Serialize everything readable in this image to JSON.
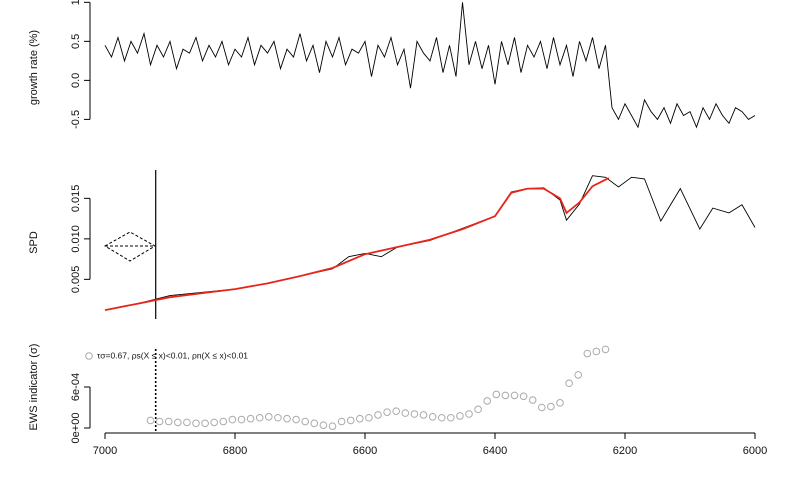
{
  "chart_data": [
    {
      "type": "line",
      "y_label": "growth rate (%)",
      "xlim": [
        7000,
        6000
      ],
      "ylim": [
        -0.7,
        1.03
      ],
      "yticks": [
        -0.5,
        {
          "value": 0,
          "label": "0.0"
        },
        0.5,
        1
      ],
      "series": [
        {
          "color": "#000000",
          "x": [
            7000,
            6990,
            6980,
            6970,
            6960,
            6950,
            6940,
            6930,
            6920,
            6910,
            6900,
            6890,
            6880,
            6870,
            6860,
            6850,
            6840,
            6830,
            6820,
            6810,
            6800,
            6790,
            6780,
            6770,
            6760,
            6750,
            6740,
            6730,
            6720,
            6710,
            6700,
            6690,
            6680,
            6670,
            6660,
            6650,
            6640,
            6630,
            6620,
            6610,
            6600,
            6590,
            6580,
            6570,
            6560,
            6550,
            6540,
            6530,
            6520,
            6510,
            6500,
            6490,
            6480,
            6470,
            6460,
            6450,
            6440,
            6430,
            6420,
            6410,
            6400,
            6390,
            6380,
            6370,
            6360,
            6350,
            6340,
            6330,
            6320,
            6310,
            6300,
            6290,
            6280,
            6270,
            6260,
            6250,
            6240,
            6230,
            6220,
            6210,
            6200,
            6190,
            6180,
            6170,
            6160,
            6150,
            6140,
            6130,
            6120,
            6110,
            6100,
            6090,
            6080,
            6070,
            6060,
            6050,
            6040,
            6030,
            6020,
            6010,
            6000
          ],
          "values": [
            0.45,
            0.3,
            0.55,
            0.25,
            0.5,
            0.35,
            0.6,
            0.2,
            0.45,
            0.3,
            0.5,
            0.15,
            0.4,
            0.35,
            0.55,
            0.25,
            0.45,
            0.3,
            0.5,
            0.2,
            0.4,
            0.3,
            0.55,
            0.2,
            0.45,
            0.35,
            0.5,
            0.15,
            0.4,
            0.3,
            0.6,
            0.25,
            0.45,
            0.1,
            0.5,
            0.3,
            0.55,
            0.2,
            0.4,
            0.35,
            0.5,
            0.05,
            0.45,
            0.3,
            0.55,
            0.2,
            0.4,
            -0.1,
            0.5,
            0.35,
            0.25,
            0.55,
            0.1,
            0.45,
            0.05,
            1.0,
            0.2,
            0.5,
            0.15,
            0.45,
            -0.05,
            0.5,
            0.2,
            0.55,
            0.1,
            0.45,
            0.3,
            0.5,
            0.15,
            0.55,
            0.2,
            0.45,
            0.05,
            0.5,
            0.25,
            0.55,
            0.15,
            0.45,
            -0.35,
            -0.5,
            -0.3,
            -0.45,
            -0.6,
            -0.25,
            -0.4,
            -0.5,
            -0.35,
            -0.55,
            -0.3,
            -0.45,
            -0.4,
            -0.6,
            -0.35,
            -0.5,
            -0.3,
            -0.45,
            -0.55,
            -0.35,
            -0.4,
            -0.5,
            -0.45
          ]
        }
      ]
    },
    {
      "type": "line",
      "y_label": "SPD",
      "xlim": [
        7000,
        6000
      ],
      "ylim": [
        0.0006,
        0.0185
      ],
      "yticks": [
        0.005,
        {
          "value": 0.01,
          "label": "0.010"
        },
        0.015
      ],
      "vline_x": 6922,
      "series": [
        {
          "color": "#000000",
          "x": [
            7000,
            6950,
            6900,
            6850,
            6800,
            6750,
            6700,
            6650,
            6625,
            6600,
            6575,
            6550,
            6500,
            6450,
            6400,
            6375,
            6350,
            6325,
            6300,
            6290,
            6270,
            6250,
            6230,
            6210,
            6190,
            6170,
            6145,
            6115,
            6085,
            6065,
            6040,
            6020,
            6000
          ],
          "values": [
            0.0012,
            0.002,
            0.003,
            0.0034,
            0.0038,
            0.0045,
            0.0054,
            0.0063,
            0.0078,
            0.0082,
            0.0078,
            0.009,
            0.0098,
            0.0113,
            0.0128,
            0.0158,
            0.0162,
            0.0163,
            0.0148,
            0.0123,
            0.0143,
            0.0178,
            0.0176,
            0.0164,
            0.0176,
            0.0174,
            0.0122,
            0.0162,
            0.0112,
            0.0138,
            0.0132,
            0.0142,
            0.0114
          ]
        },
        {
          "color": "#e8251a",
          "x": [
            7000,
            6950,
            6900,
            6850,
            6800,
            6750,
            6700,
            6650,
            6600,
            6550,
            6500,
            6450,
            6400,
            6375,
            6350,
            6325,
            6300,
            6290,
            6270,
            6250,
            6225
          ],
          "values": [
            0.0012,
            0.002,
            0.0028,
            0.0033,
            0.0038,
            0.0045,
            0.0054,
            0.0064,
            0.0081,
            0.009,
            0.0099,
            0.0112,
            0.0128,
            0.0157,
            0.0162,
            0.0162,
            0.015,
            0.0132,
            0.0145,
            0.0165,
            0.0175
          ]
        }
      ]
    },
    {
      "type": "scatter",
      "y_label": "EWS indicator (σ)",
      "annotation": "τσ=0.67, ρs(X ≤ x)<0.01, ρn(X ≤ x)<0.01",
      "xlim": [
        7000,
        6000
      ],
      "ylim": [
        0,
        0.0012
      ],
      "xticks": [
        7000,
        6800,
        6600,
        6400,
        6200,
        6000
      ],
      "yticks": [
        {
          "value": 0,
          "label": "0e+00"
        },
        {
          "value": 0.0006,
          "label": "6e-04"
        }
      ],
      "vline_x": 6922,
      "series": [
        {
          "color": "#aaaaaa",
          "x": [
            6930,
            6916,
            6902,
            6888,
            6874,
            6860,
            6846,
            6832,
            6818,
            6804,
            6790,
            6776,
            6762,
            6748,
            6734,
            6720,
            6706,
            6692,
            6678,
            6664,
            6650,
            6636,
            6622,
            6608,
            6594,
            6580,
            6566,
            6552,
            6538,
            6524,
            6510,
            6496,
            6482,
            6468,
            6454,
            6440,
            6426,
            6412,
            6398,
            6384,
            6370,
            6356,
            6342,
            6328,
            6314,
            6300,
            6286,
            6272,
            6258,
            6244,
            6230
          ],
          "values": [
            0.00011,
            9.5e-05,
            9.5e-05,
            8.2e-05,
            8.2e-05,
            6.8e-05,
            6.8e-05,
            8.2e-05,
            9.5e-05,
            0.000123,
            0.000123,
            0.000136,
            0.00015,
            0.000164,
            0.00015,
            0.000136,
            0.000123,
            9.5e-05,
            6.8e-05,
            4.1e-05,
            2.7e-05,
            9.5e-05,
            0.00011,
            0.000136,
            0.00015,
            0.000191,
            0.000232,
            0.000246,
            0.000218,
            0.000205,
            0.000191,
            0.000164,
            0.00015,
            0.00015,
            0.000177,
            0.000205,
            0.000273,
            0.000396,
            0.000491,
            0.000477,
            0.000477,
            0.000464,
            0.000409,
            0.0003,
            0.000314,
            0.000368,
            0.000655,
            0.000777,
            0.00109,
            0.00112,
            0.00115
          ]
        }
      ]
    }
  ]
}
